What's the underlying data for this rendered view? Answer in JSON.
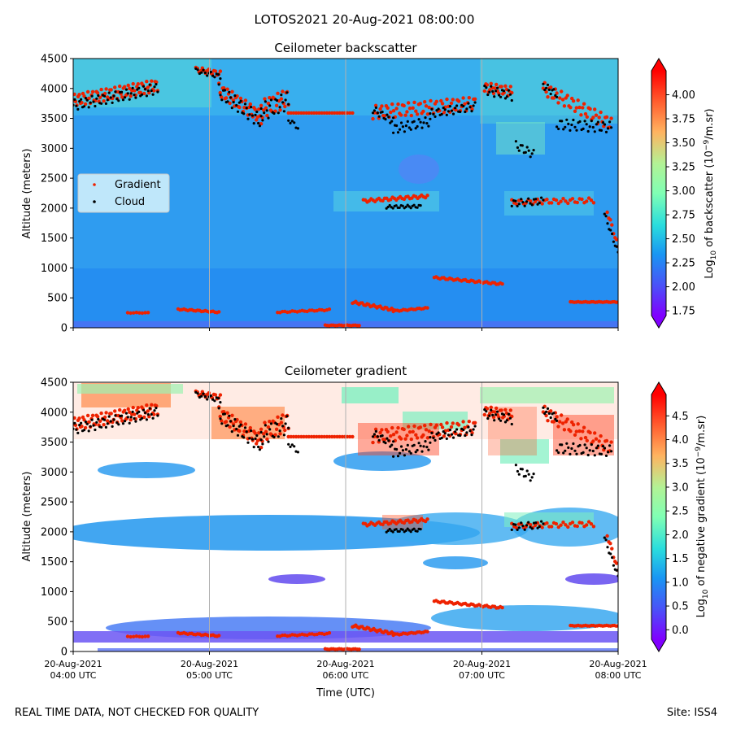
{
  "title": "LOTOS2021 20-Aug-2021 08:00:00",
  "footer": {
    "left": "REAL TIME DATA, NOT CHECKED FOR QUALITY",
    "right": "Site: ISS4"
  },
  "x_axis": {
    "label": "Time (UTC)",
    "ticks": [
      {
        "date": "20-Aug-2021",
        "time": "04:00 UTC",
        "value": 4
      },
      {
        "date": "20-Aug-2021",
        "time": "05:00 UTC",
        "value": 5
      },
      {
        "date": "20-Aug-2021",
        "time": "06:00 UTC",
        "value": 6
      },
      {
        "date": "20-Aug-2021",
        "time": "07:00 UTC",
        "value": 7
      },
      {
        "date": "20-Aug-2021",
        "time": "08:00 UTC",
        "value": 8
      }
    ],
    "xlim": [
      4,
      8
    ]
  },
  "colors": {
    "gradient_marker": "#ee2200",
    "cloud_marker": "#000000",
    "legend_bg": "#d8f4fb"
  },
  "chart_data": [
    {
      "type": "heatmap",
      "title": "Ceilometer backscatter",
      "ylabel": "Altitude (meters)",
      "ylim": [
        0,
        4500
      ],
      "yticks": [
        0,
        500,
        1000,
        1500,
        2000,
        2500,
        3000,
        3500,
        4000,
        4500
      ],
      "colorbar": {
        "label_prefix": "Log",
        "label_sub": "10",
        "label_rest": " of backscatter (10",
        "label_sup": "−9",
        "label_end": "/m.sr)",
        "range": [
          1.7,
          4.25
        ],
        "ticks": [
          1.75,
          2.0,
          2.25,
          2.5,
          2.75,
          3.0,
          3.25,
          3.5,
          3.75,
          4.0
        ],
        "tick_labels": [
          "1.75",
          "2.00",
          "2.25",
          "2.50",
          "2.75",
          "3.00",
          "3.25",
          "3.50",
          "3.75",
          "4.00"
        ]
      },
      "legend": [
        {
          "label": "Gradient",
          "color": "#ee2200"
        },
        {
          "label": "Cloud",
          "color": "#000000"
        }
      ]
    },
    {
      "type": "heatmap",
      "title": "Ceilometer gradient",
      "ylabel": "Altitude (meters)",
      "ylim": [
        0,
        4500
      ],
      "yticks": [
        0,
        500,
        1000,
        1500,
        2000,
        2500,
        3000,
        3500,
        4000,
        4500
      ],
      "colorbar": {
        "label_prefix": "Log",
        "label_sub": "10",
        "label_rest": " of negative gradient (10",
        "label_sup": "−9",
        "label_end": "/m.sr)",
        "range": [
          -0.2,
          4.95
        ],
        "ticks": [
          0.0,
          0.5,
          1.0,
          1.5,
          2.0,
          2.5,
          3.0,
          3.5,
          4.0,
          4.5
        ],
        "tick_labels": [
          "0.0",
          "0.5",
          "1.0",
          "1.5",
          "2.0",
          "2.5",
          "3.0",
          "3.5",
          "4.0",
          "4.5"
        ]
      }
    }
  ],
  "series": {
    "cloud": [
      {
        "t0": 4.0,
        "t1": 4.62,
        "alt0": 3720,
        "alt1": 4000,
        "osc": 90,
        "n": 55
      },
      {
        "t0": 4.9,
        "t1": 5.08,
        "alt0": 4300,
        "alt1": 4200,
        "osc": 40,
        "n": 14
      },
      {
        "t0": 5.07,
        "t1": 5.38,
        "alt0": 3950,
        "alt1": 3450,
        "osc": 120,
        "n": 30
      },
      {
        "t0": 5.38,
        "t1": 5.58,
        "alt0": 3600,
        "alt1": 3800,
        "osc": 150,
        "n": 20
      },
      {
        "t0": 5.58,
        "t1": 5.65,
        "alt0": 3480,
        "alt1": 3350,
        "osc": 40,
        "n": 6
      },
      {
        "t0": 6.2,
        "t1": 6.35,
        "alt0": 3650,
        "alt1": 3450,
        "osc": 60,
        "n": 14
      },
      {
        "t0": 6.35,
        "t1": 6.62,
        "alt0": 3320,
        "alt1": 3450,
        "osc": 80,
        "n": 24
      },
      {
        "t0": 6.62,
        "t1": 6.95,
        "alt0": 3580,
        "alt1": 3700,
        "osc": 70,
        "n": 28
      },
      {
        "t0": 7.02,
        "t1": 7.22,
        "alt0": 3980,
        "alt1": 3880,
        "osc": 80,
        "n": 18
      },
      {
        "t0": 7.25,
        "t1": 7.38,
        "alt0": 3050,
        "alt1": 2900,
        "osc": 70,
        "n": 12
      },
      {
        "t0": 7.45,
        "t1": 7.55,
        "alt0": 4050,
        "alt1": 3900,
        "osc": 60,
        "n": 10
      },
      {
        "t0": 7.55,
        "t1": 7.95,
        "alt0": 3400,
        "alt1": 3350,
        "osc": 90,
        "n": 34
      },
      {
        "t0": 6.3,
        "t1": 6.55,
        "alt0": 2020,
        "alt1": 2030,
        "osc": 25,
        "n": 22
      },
      {
        "t0": 7.22,
        "t1": 7.45,
        "alt0": 2080,
        "alt1": 2120,
        "osc": 60,
        "n": 18
      },
      {
        "t0": 7.9,
        "t1": 8.0,
        "alt0": 1900,
        "alt1": 1250,
        "osc": 40,
        "n": 10
      }
    ],
    "gradient": [
      {
        "t0": 4.0,
        "t1": 4.62,
        "alt0": 3800,
        "alt1": 4050,
        "osc": 100,
        "n": 70
      },
      {
        "t0": 4.9,
        "t1": 5.08,
        "alt0": 4320,
        "alt1": 4250,
        "osc": 40,
        "n": 16
      },
      {
        "t0": 5.07,
        "t1": 5.38,
        "alt0": 3980,
        "alt1": 3520,
        "osc": 110,
        "n": 36
      },
      {
        "t0": 5.38,
        "t1": 5.58,
        "alt0": 3650,
        "alt1": 3850,
        "osc": 150,
        "n": 24
      },
      {
        "t0": 5.58,
        "t1": 6.05,
        "alt0": 3590,
        "alt1": 3590,
        "osc": 0,
        "n": 26
      },
      {
        "t0": 6.2,
        "t1": 6.95,
        "alt0": 3600,
        "alt1": 3750,
        "osc": 110,
        "n": 70
      },
      {
        "t0": 7.02,
        "t1": 7.22,
        "alt0": 4020,
        "alt1": 3950,
        "osc": 80,
        "n": 22
      },
      {
        "t0": 7.45,
        "t1": 7.95,
        "alt0": 4000,
        "alt1": 3400,
        "osc": 110,
        "n": 46
      },
      {
        "t0": 6.13,
        "t1": 6.6,
        "alt0": 2120,
        "alt1": 2200,
        "osc": 25,
        "n": 34
      },
      {
        "t0": 7.22,
        "t1": 7.82,
        "alt0": 2100,
        "alt1": 2130,
        "osc": 40,
        "n": 36
      },
      {
        "t0": 4.77,
        "t1": 5.07,
        "alt0": 310,
        "alt1": 260,
        "osc": 10,
        "n": 22
      },
      {
        "t0": 5.5,
        "t1": 5.88,
        "alt0": 260,
        "alt1": 300,
        "osc": 10,
        "n": 22
      },
      {
        "t0": 6.05,
        "t1": 6.35,
        "alt0": 430,
        "alt1": 300,
        "osc": 20,
        "n": 26
      },
      {
        "t0": 6.35,
        "t1": 6.6,
        "alt0": 280,
        "alt1": 330,
        "osc": 10,
        "n": 18
      },
      {
        "t0": 6.65,
        "t1": 7.15,
        "alt0": 840,
        "alt1": 730,
        "osc": 15,
        "n": 36
      },
      {
        "t0": 7.65,
        "t1": 8.0,
        "alt0": 430,
        "alt1": 430,
        "osc": 5,
        "n": 26
      },
      {
        "t0": 5.85,
        "t1": 6.1,
        "alt0": 40,
        "alt1": 40,
        "osc": 5,
        "n": 18
      },
      {
        "t0": 4.4,
        "t1": 4.55,
        "alt0": 250,
        "alt1": 250,
        "osc": 5,
        "n": 8
      },
      {
        "t0": 7.92,
        "t1": 8.0,
        "alt0": 1950,
        "alt1": 1350,
        "osc": 40,
        "n": 8
      }
    ]
  }
}
